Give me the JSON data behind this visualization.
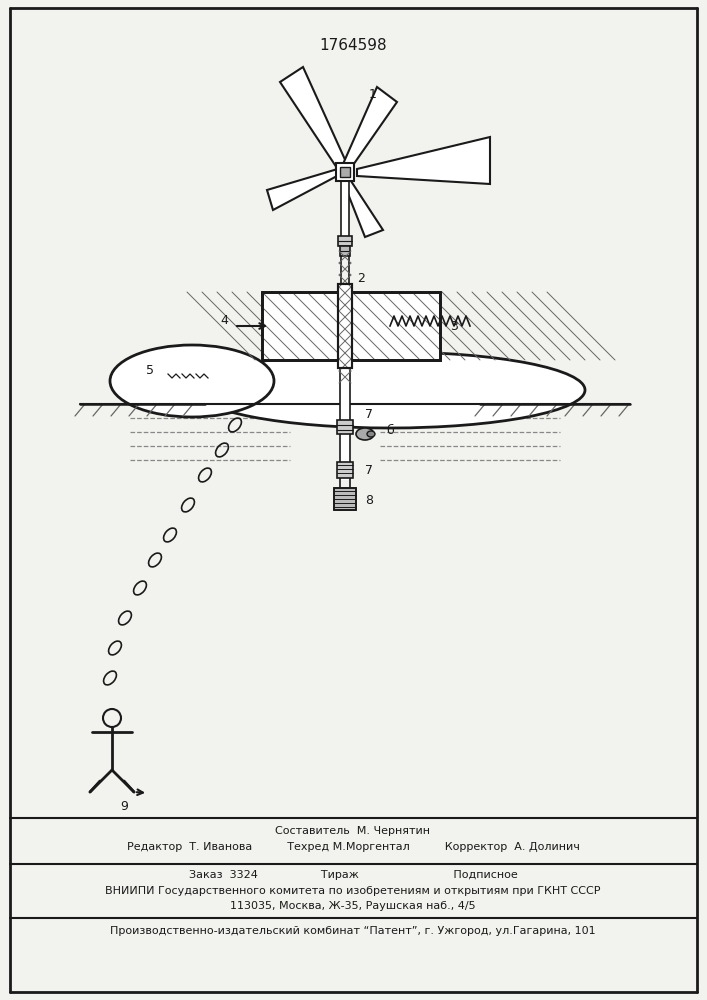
{
  "patent_number": "1764598",
  "bg_color": "#f2f2ee",
  "line_color": "#1a1a1a",
  "footer_lines": [
    "Составитель  М. Чернятин",
    "Редактор  Т. Иванова          Техред М.Моргентал          Корректор  А. Долинич",
    "Заказ  3324                  Тираж                           Подписное",
    "ВНИИПИ Государственного комитета по изобретениям и открытиям при ГКНТ СССР",
    "113035, Москва, Ж-35, Раушская наб., 4/5",
    "Производственно-издательский комбинат “Патент”, г. Ужгород, ул.Гагарина, 101"
  ]
}
